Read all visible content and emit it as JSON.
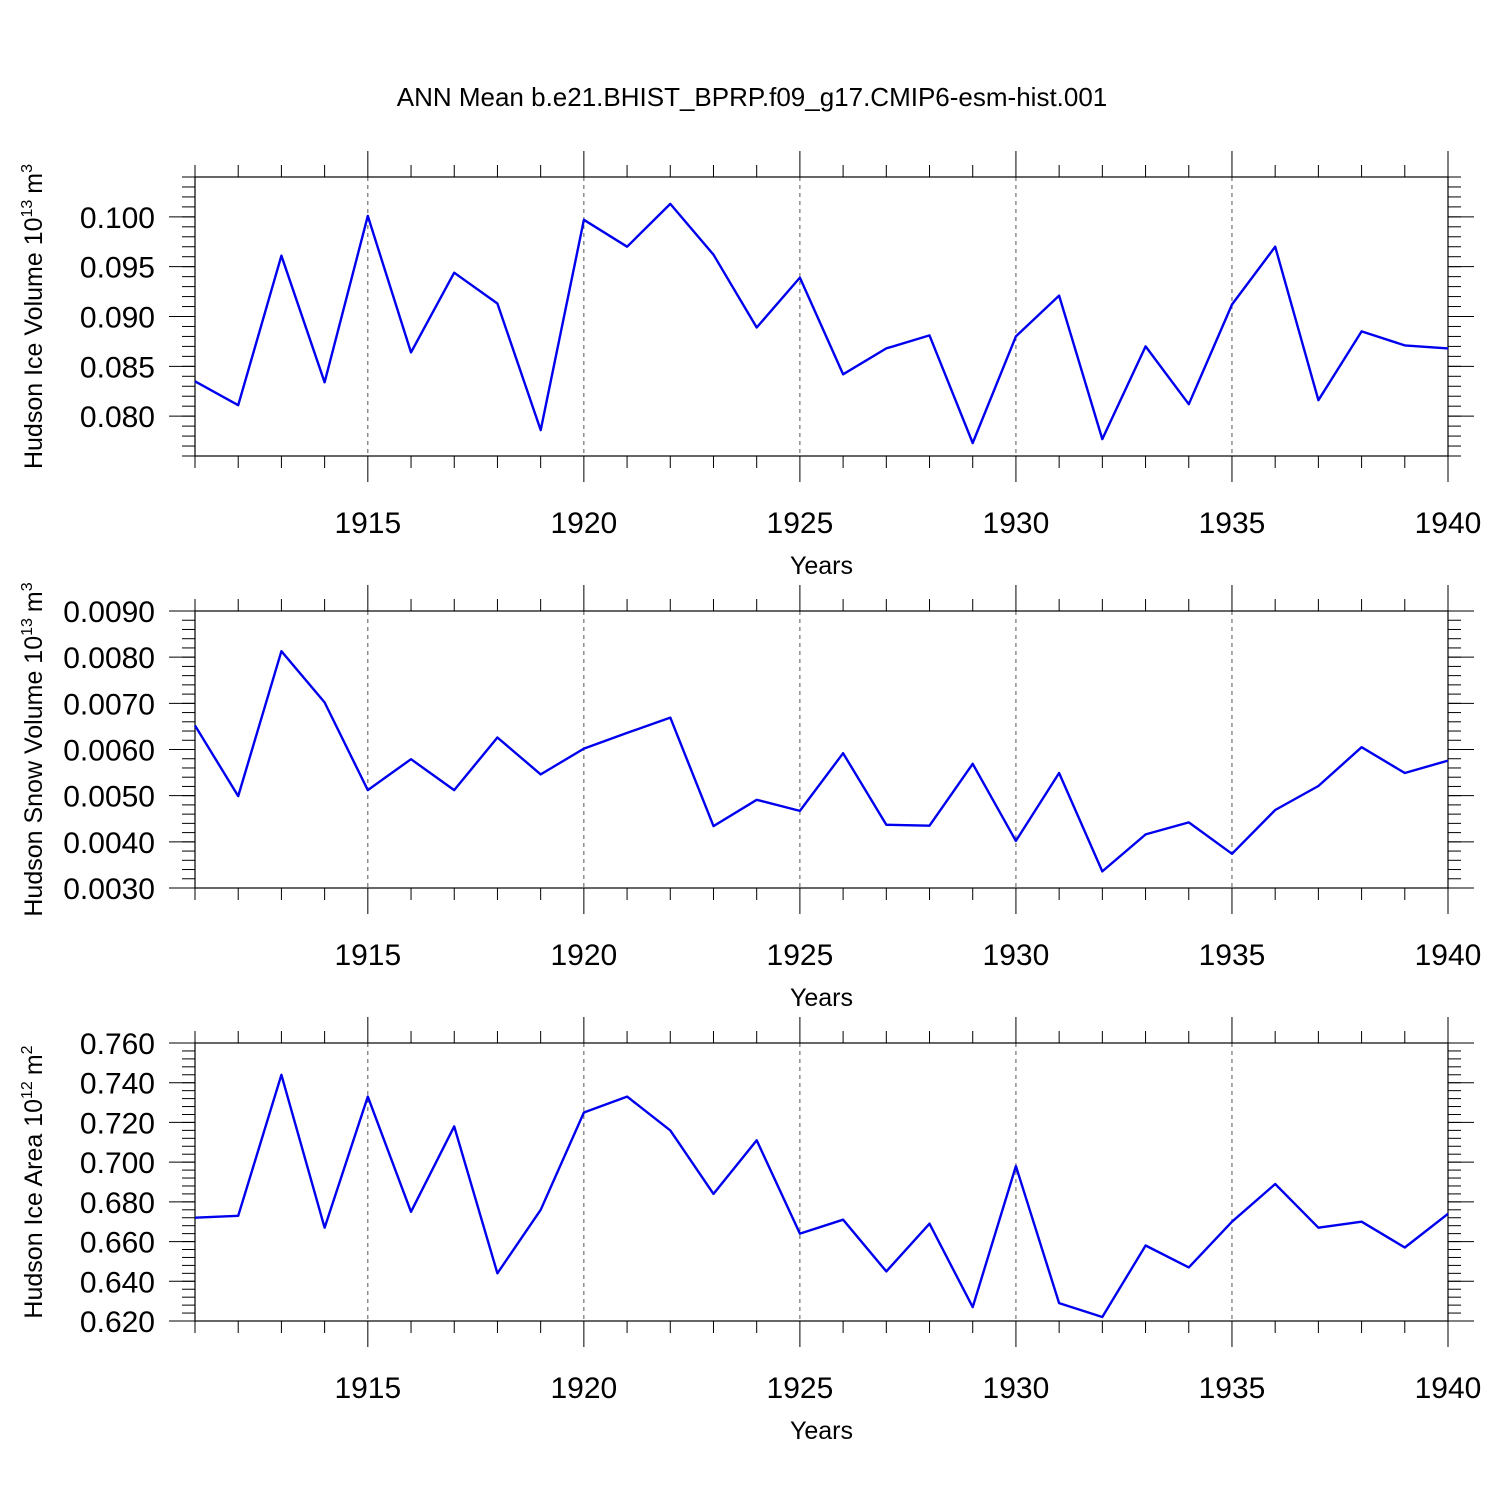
{
  "title": "ANN Mean b.e21.BHIST_BPRP.f09_g17.CMIP6-esm-hist.001",
  "colors": {
    "line": "#0000ee",
    "axes": "#000000",
    "grid": "#555555"
  },
  "chart_data": [
    {
      "type": "line",
      "ylabel_main": "Hudson Ice Volume 10",
      "ylabel_exp": "13",
      "ylabel_unit": "m",
      "ylabel_unit_exp": "3",
      "xlabel": "Years",
      "xlim": [
        1911,
        1940
      ],
      "ylim": [
        0.076,
        0.104
      ],
      "xticks": [
        "1915",
        "1920",
        "1925",
        "1930",
        "1935",
        "1940"
      ],
      "yticks": [
        "0.080",
        "0.085",
        "0.090",
        "0.095",
        "0.100"
      ],
      "grid": "vertical dashed at major x ticks",
      "x": [
        1911,
        1912,
        1913,
        1914,
        1915,
        1916,
        1917,
        1918,
        1919,
        1920,
        1921,
        1922,
        1923,
        1924,
        1925,
        1926,
        1927,
        1928,
        1929,
        1930,
        1931,
        1932,
        1933,
        1934,
        1935,
        1936,
        1937,
        1938,
        1939,
        1940
      ],
      "series": [
        {
          "values": [
            0.0835,
            0.0811,
            0.0961,
            0.0834,
            0.1001,
            0.0864,
            0.0944,
            0.0913,
            0.0786,
            0.0997,
            0.097,
            0.1013,
            0.0962,
            0.0889,
            0.0939,
            0.0842,
            0.0868,
            0.0881,
            0.0773,
            0.088,
            0.0921,
            0.0777,
            0.087,
            0.0812,
            0.0912,
            0.097,
            0.0816,
            0.0885,
            0.0871,
            0.0868
          ]
        }
      ]
    },
    {
      "type": "line",
      "ylabel_main": "Hudson Snow Volume 10",
      "ylabel_exp": "13",
      "ylabel_unit": "m",
      "ylabel_unit_exp": "3",
      "xlabel": "Years",
      "xlim": [
        1911,
        1940
      ],
      "ylim": [
        0.003,
        0.009
      ],
      "xticks": [
        "1915",
        "1920",
        "1925",
        "1930",
        "1935",
        "1940"
      ],
      "yticks": [
        "0.0030",
        "0.0040",
        "0.0050",
        "0.0060",
        "0.0070",
        "0.0080",
        "0.0090"
      ],
      "grid": "vertical dashed at major x ticks",
      "x": [
        1911,
        1912,
        1913,
        1914,
        1915,
        1916,
        1917,
        1918,
        1919,
        1920,
        1921,
        1922,
        1923,
        1924,
        1925,
        1926,
        1927,
        1928,
        1929,
        1930,
        1931,
        1932,
        1933,
        1934,
        1935,
        1936,
        1937,
        1938,
        1939,
        1940
      ],
      "series": [
        {
          "values": [
            0.00652,
            0.00499,
            0.00813,
            0.00702,
            0.00512,
            0.00579,
            0.00512,
            0.00626,
            0.00546,
            0.00602,
            0.00636,
            0.00669,
            0.00434,
            0.00491,
            0.00467,
            0.00592,
            0.00437,
            0.00435,
            0.00569,
            0.00402,
            0.00549,
            0.00336,
            0.00416,
            0.00442,
            0.00374,
            0.00469,
            0.00521,
            0.00605,
            0.00549,
            0.00576
          ]
        }
      ]
    },
    {
      "type": "line",
      "ylabel_main": "Hudson Ice Area 10",
      "ylabel_exp": "12",
      "ylabel_unit": "m",
      "ylabel_unit_exp": "2",
      "xlabel": "Years",
      "xlim": [
        1911,
        1940
      ],
      "ylim": [
        0.62,
        0.76
      ],
      "xticks": [
        "1915",
        "1920",
        "1925",
        "1930",
        "1935",
        "1940"
      ],
      "yticks": [
        "0.620",
        "0.640",
        "0.660",
        "0.680",
        "0.700",
        "0.720",
        "0.740",
        "0.760"
      ],
      "grid": "vertical dashed at major x ticks",
      "x": [
        1911,
        1912,
        1913,
        1914,
        1915,
        1916,
        1917,
        1918,
        1919,
        1920,
        1921,
        1922,
        1923,
        1924,
        1925,
        1926,
        1927,
        1928,
        1929,
        1930,
        1931,
        1932,
        1933,
        1934,
        1935,
        1936,
        1937,
        1938,
        1939,
        1940
      ],
      "series": [
        {
          "values": [
            0.672,
            0.673,
            0.744,
            0.667,
            0.733,
            0.675,
            0.718,
            0.644,
            0.676,
            0.725,
            0.733,
            0.716,
            0.684,
            0.711,
            0.664,
            0.671,
            0.645,
            0.669,
            0.627,
            0.698,
            0.629,
            0.622,
            0.658,
            0.647,
            0.67,
            0.689,
            0.667,
            0.67,
            0.657,
            0.674
          ]
        }
      ]
    }
  ]
}
